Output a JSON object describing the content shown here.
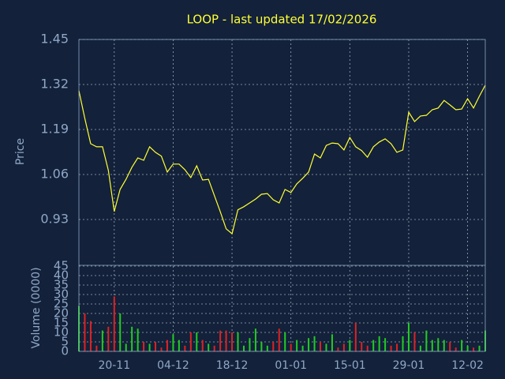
{
  "chart_data": [
    {
      "type": "line",
      "title": "LOOP - last updated 17/02/2026",
      "ylabel": "Price",
      "color": "#ffff33",
      "grid": true,
      "ylim": [
        0.8,
        1.45
      ],
      "yticks": [
        0.93,
        1.06,
        1.19,
        1.32,
        1.45
      ],
      "values": [
        1.302,
        1.222,
        1.149,
        1.14,
        1.14,
        1.072,
        0.953,
        1.017,
        1.046,
        1.081,
        1.108,
        1.101,
        1.14,
        1.124,
        1.113,
        1.067,
        1.09,
        1.09,
        1.074,
        1.051,
        1.085,
        1.044,
        1.046,
        0.999,
        0.953,
        0.903,
        0.889,
        0.958,
        0.967,
        0.978,
        0.989,
        1.003,
        1.005,
        0.987,
        0.978,
        1.017,
        1.008,
        1.033,
        1.049,
        1.067,
        1.119,
        1.108,
        1.144,
        1.151,
        1.149,
        1.131,
        1.167,
        1.14,
        1.129,
        1.11,
        1.14,
        1.154,
        1.163,
        1.149,
        1.124,
        1.131,
        1.24,
        1.213,
        1.229,
        1.231,
        1.247,
        1.252,
        1.274,
        1.261,
        1.247,
        1.249,
        1.279,
        1.252,
        1.286,
        1.318
      ]
    },
    {
      "type": "bar",
      "ylabel": "Volume (0000)",
      "up_color": "#22cc22",
      "down_color": "#dd2222",
      "grid": true,
      "ylim": [
        0,
        45
      ],
      "yticks": [
        0,
        5,
        10,
        15,
        20,
        25,
        30,
        35,
        40,
        45
      ],
      "categories": [
        null,
        null,
        null,
        null,
        null,
        null,
        "20-11",
        null,
        null,
        null,
        null,
        null,
        null,
        null,
        null,
        null,
        "04-12",
        null,
        null,
        null,
        null,
        null,
        null,
        null,
        null,
        null,
        "18-12",
        null,
        null,
        null,
        null,
        null,
        null,
        null,
        null,
        null,
        "01-01",
        null,
        null,
        null,
        null,
        null,
        null,
        null,
        null,
        null,
        "15-01",
        null,
        null,
        null,
        null,
        null,
        null,
        null,
        null,
        null,
        "29-01",
        null,
        null,
        null,
        null,
        null,
        null,
        null,
        null,
        null,
        "12-02",
        null,
        null,
        null
      ],
      "values": [
        24,
        20,
        16,
        3,
        11,
        13,
        29,
        20,
        4,
        13,
        12,
        5,
        4,
        5,
        2,
        6,
        9,
        6,
        3,
        10,
        10,
        6,
        4,
        3,
        11,
        11,
        10,
        10,
        3,
        7,
        12,
        5,
        3,
        5,
        12,
        10,
        4,
        6,
        3,
        7,
        8,
        5,
        4,
        9,
        2,
        4,
        6,
        15,
        5,
        3,
        6,
        8,
        7,
        3,
        4,
        8,
        15,
        10,
        3,
        11,
        6,
        7,
        6,
        5,
        2,
        6,
        3,
        2,
        3,
        11
      ]
    }
  ]
}
